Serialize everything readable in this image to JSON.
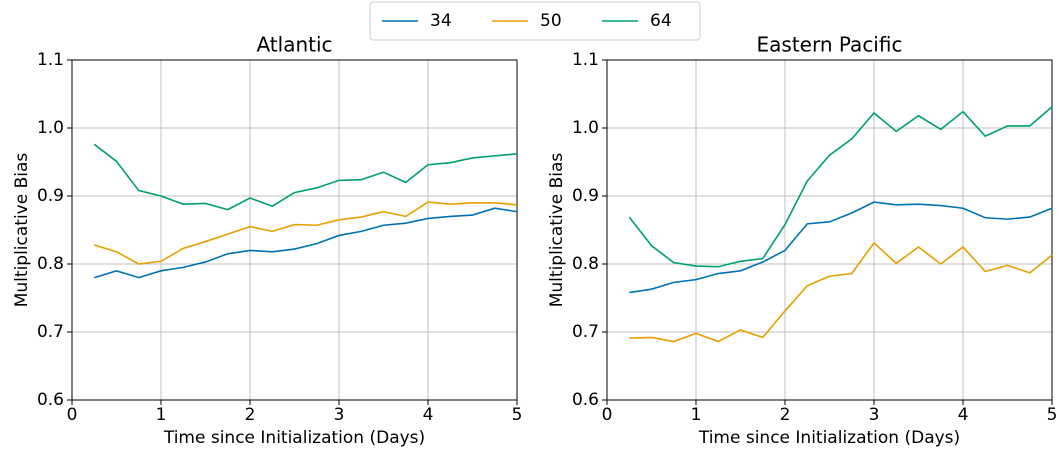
{
  "chart_data": [
    {
      "type": "line",
      "title": "Atlantic",
      "xlabel": "Time since Initialization (Days)",
      "ylabel": "Multiplicative Bias",
      "x": [
        0.25,
        0.5,
        0.75,
        1,
        1.25,
        1.5,
        1.75,
        2,
        2.25,
        2.5,
        2.75,
        3,
        3.25,
        3.5,
        3.75,
        4,
        4.25,
        4.5,
        4.75,
        5
      ],
      "xlim": [
        0,
        5
      ],
      "xticks": [
        0,
        1,
        2,
        3,
        4,
        5
      ],
      "ylim": [
        0.6,
        1.1
      ],
      "yticks": [
        0.6,
        0.7,
        0.8,
        0.9,
        {
          "value": 1,
          "label": "1.0"
        },
        1.1
      ],
      "grid": true,
      "series": [
        {
          "name": "34",
          "color": "#0072b2",
          "values": [
            0.78,
            0.79,
            0.78,
            0.79,
            0.795,
            0.803,
            0.815,
            0.82,
            0.818,
            0.822,
            0.83,
            0.842,
            0.848,
            0.857,
            0.86,
            0.867,
            0.87,
            0.872,
            0.882,
            0.877
          ]
        },
        {
          "name": "50",
          "color": "#e69f00",
          "values": [
            0.828,
            0.818,
            0.8,
            0.804,
            0.823,
            0.833,
            0.844,
            0.855,
            0.848,
            0.858,
            0.857,
            0.865,
            0.869,
            0.877,
            0.87,
            0.891,
            0.888,
            0.89,
            0.89,
            0.887
          ]
        },
        {
          "name": "64",
          "color": "#009e73",
          "values": [
            0.976,
            0.951,
            0.908,
            0.9,
            0.888,
            0.889,
            0.88,
            0.897,
            0.885,
            0.905,
            0.912,
            0.923,
            0.924,
            0.935,
            0.92,
            0.946,
            0.949,
            0.956,
            0.959,
            0.962
          ]
        }
      ]
    },
    {
      "type": "line",
      "title": "Eastern Pacific",
      "xlabel": "Time since Initialization (Days)",
      "ylabel": "Multiplicative Bias",
      "x": [
        0.25,
        0.5,
        0.75,
        1,
        1.25,
        1.5,
        1.75,
        2,
        2.25,
        2.5,
        2.75,
        3,
        3.25,
        3.5,
        3.75,
        4,
        4.25,
        4.5,
        4.75,
        5
      ],
      "xlim": [
        0,
        5
      ],
      "xticks": [
        0,
        1,
        2,
        3,
        4,
        5
      ],
      "ylim": [
        0.6,
        1.1
      ],
      "yticks": [
        0.6,
        0.7,
        0.8,
        0.9,
        {
          "value": 1,
          "label": "1.0"
        },
        1.1
      ],
      "grid": true,
      "series": [
        {
          "color": "#0072b2",
          "values": [
            0.758,
            0.763,
            0.773,
            0.777,
            0.786,
            0.79,
            0.803,
            0.82,
            0.859,
            0.862,
            0.875,
            0.891,
            0.887,
            0.888,
            0.886,
            0.882,
            0.868,
            0.866,
            0.869,
            0.882
          ]
        },
        {
          "color": "#e69f00",
          "values": [
            0.691,
            0.692,
            0.686,
            0.698,
            0.686,
            0.703,
            0.692,
            0.731,
            0.768,
            0.782,
            0.786,
            0.831,
            0.801,
            0.825,
            0.8,
            0.825,
            0.789,
            0.798,
            0.787,
            0.813
          ]
        },
        {
          "color": "#009e73",
          "values": [
            0.869,
            0.827,
            0.802,
            0.797,
            0.796,
            0.804,
            0.808,
            0.858,
            0.922,
            0.96,
            0.984,
            1.022,
            0.995,
            1.018,
            0.998,
            1.024,
            0.988,
            1.003,
            1.003,
            1.031
          ]
        }
      ]
    }
  ]
}
